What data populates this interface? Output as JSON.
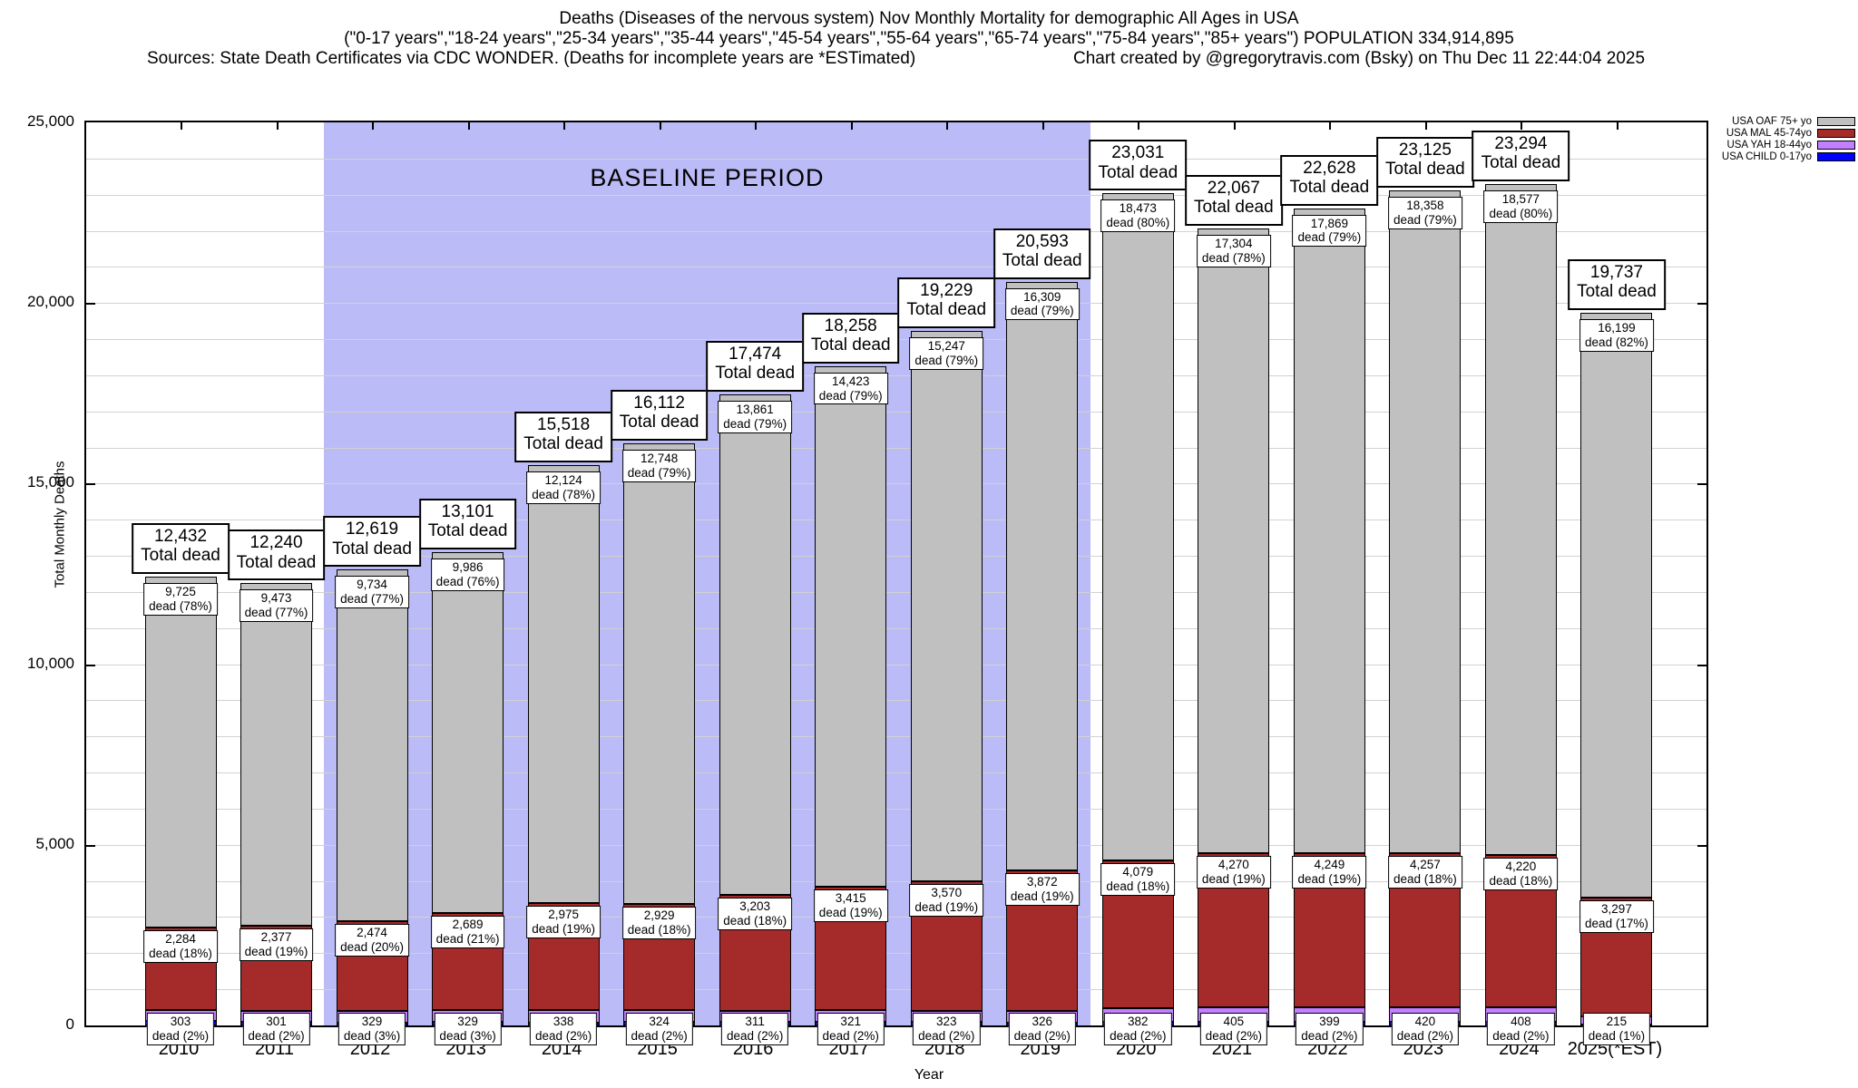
{
  "header": {
    "title_line1": "Deaths (Diseases of the nervous system) Nov Monthly Mortality for demographic All Ages in USA",
    "title_line2": "(\"0-17 years\",\"18-24 years\",\"25-34 years\",\"35-44 years\",\"45-54 years\",\"55-64 years\",\"65-74 years\",\"75-84 years\",\"85+ years\") POPULATION 334,914,895",
    "title_line3_left": "Sources: State Death Certificates via CDC WONDER. (Deaths for incomplete years are *ESTimated)",
    "title_line3_right": "Chart created by @gregorytravis.com (Bsky) on Thu Dec 11 22:44:04 2025"
  },
  "legend": {
    "position": "top-right",
    "entries": [
      {
        "label": "USA OAF 75+ yo",
        "color": "#c0c0c0"
      },
      {
        "label": "USA MAL 45-74yo",
        "color": "#a52a2a"
      },
      {
        "label": "USA YAH 18-44yo",
        "color": "#c27fff"
      },
      {
        "label": "USA CHILD 0-17yo",
        "color": "#0000ff"
      }
    ]
  },
  "baseline_period": {
    "label": "BASELINE PERIOD",
    "start_year": "2012",
    "end_year": "2019",
    "band_color": "#bbbbf7"
  },
  "axes": {
    "ylabel": "Total Monthly Deaths",
    "xlabel": "Year",
    "ylim": [
      0,
      25000
    ],
    "grid_step": 1000,
    "grid": true,
    "ytick_values": [
      0,
      5000,
      10000,
      15000,
      20000,
      25000
    ],
    "ytick_labels": [
      "0",
      "5,000",
      "10,000",
      "15,000",
      "20,000",
      "25,000"
    ]
  },
  "chart_data": {
    "type": "bar",
    "stacked": true,
    "title": "Deaths (Diseases of the nervous system) Nov Monthly Mortality for demographic All Ages in USA",
    "xlabel": "Year",
    "ylabel": "Total Monthly Deaths",
    "ylim": [
      0,
      25000
    ],
    "legend_position": "top-right",
    "series_meta": [
      {
        "name": "USA OAF 75+ yo",
        "key": "oaf",
        "color": "#c0c0c0"
      },
      {
        "name": "USA MAL 45-74yo",
        "key": "mal",
        "color": "#a52a2a"
      },
      {
        "name": "USA YAH 18-44yo",
        "key": "yah",
        "color": "#c27fff"
      },
      {
        "name": "USA CHILD 0-17yo",
        "key": "child",
        "color": "#0000ff",
        "note": "unlabeled remainder of total"
      }
    ],
    "total_label_suffix": "Total dead",
    "segment_label_prefix": "dead",
    "bars": [
      {
        "year": "2010",
        "total": 12432,
        "total_label": "12,432",
        "oaf": 9725,
        "oaf_label": "9,725",
        "oaf_pct": "78%",
        "mal": 2284,
        "mal_label": "2,284",
        "mal_pct": "18%",
        "yah": 303,
        "yah_label": "303",
        "yah_pct": "2%"
      },
      {
        "year": "2011",
        "total": 12240,
        "total_label": "12,240",
        "oaf": 9473,
        "oaf_label": "9,473",
        "oaf_pct": "77%",
        "mal": 2377,
        "mal_label": "2,377",
        "mal_pct": "19%",
        "yah": 301,
        "yah_label": "301",
        "yah_pct": "2%"
      },
      {
        "year": "2012",
        "total": 12619,
        "total_label": "12,619",
        "oaf": 9734,
        "oaf_label": "9,734",
        "oaf_pct": "77%",
        "mal": 2474,
        "mal_label": "2,474",
        "mal_pct": "20%",
        "yah": 329,
        "yah_label": "329",
        "yah_pct": "3%"
      },
      {
        "year": "2013",
        "total": 13101,
        "total_label": "13,101",
        "oaf": 9986,
        "oaf_label": "9,986",
        "oaf_pct": "76%",
        "mal": 2689,
        "mal_label": "2,689",
        "mal_pct": "21%",
        "yah": 329,
        "yah_label": "329",
        "yah_pct": "3%"
      },
      {
        "year": "2014",
        "total": 15518,
        "total_label": "15,518",
        "oaf": 12124,
        "oaf_label": "12,124",
        "oaf_pct": "78%",
        "mal": 2975,
        "mal_label": "2,975",
        "mal_pct": "19%",
        "yah": 338,
        "yah_label": "338",
        "yah_pct": "2%"
      },
      {
        "year": "2015",
        "total": 16112,
        "total_label": "16,112",
        "oaf": 12748,
        "oaf_label": "12,748",
        "oaf_pct": "79%",
        "mal": 2929,
        "mal_label": "2,929",
        "mal_pct": "18%",
        "yah": 324,
        "yah_label": "324",
        "yah_pct": "2%"
      },
      {
        "year": "2016",
        "total": 17474,
        "total_label": "17,474",
        "oaf": 13861,
        "oaf_label": "13,861",
        "oaf_pct": "79%",
        "mal": 3203,
        "mal_label": "3,203",
        "mal_pct": "18%",
        "yah": 311,
        "yah_label": "311",
        "yah_pct": "2%"
      },
      {
        "year": "2017",
        "total": 18258,
        "total_label": "18,258",
        "oaf": 14423,
        "oaf_label": "14,423",
        "oaf_pct": "79%",
        "mal": 3415,
        "mal_label": "3,415",
        "mal_pct": "19%",
        "yah": 321,
        "yah_label": "321",
        "yah_pct": "2%"
      },
      {
        "year": "2018",
        "total": 19229,
        "total_label": "19,229",
        "oaf": 15247,
        "oaf_label": "15,247",
        "oaf_pct": "79%",
        "mal": 3570,
        "mal_label": "3,570",
        "mal_pct": "19%",
        "yah": 323,
        "yah_label": "323",
        "yah_pct": "2%"
      },
      {
        "year": "2019",
        "total": 20593,
        "total_label": "20,593",
        "oaf": 16309,
        "oaf_label": "16,309",
        "oaf_pct": "79%",
        "mal": 3872,
        "mal_label": "3,872",
        "mal_pct": "19%",
        "yah": 326,
        "yah_label": "326",
        "yah_pct": "2%"
      },
      {
        "year": "2020",
        "total": 23031,
        "total_label": "23,031",
        "oaf": 18473,
        "oaf_label": "18,473",
        "oaf_pct": "80%",
        "mal": 4079,
        "mal_label": "4,079",
        "mal_pct": "18%",
        "yah": 382,
        "yah_label": "382",
        "yah_pct": "2%"
      },
      {
        "year": "2021",
        "total": 22067,
        "total_label": "22,067",
        "oaf": 17304,
        "oaf_label": "17,304",
        "oaf_pct": "78%",
        "mal": 4270,
        "mal_label": "4,270",
        "mal_pct": "19%",
        "yah": 405,
        "yah_label": "405",
        "yah_pct": "2%"
      },
      {
        "year": "2022",
        "total": 22628,
        "total_label": "22,628",
        "oaf": 17869,
        "oaf_label": "17,869",
        "oaf_pct": "79%",
        "mal": 4249,
        "mal_label": "4,249",
        "mal_pct": "19%",
        "yah": 399,
        "yah_label": "399",
        "yah_pct": "2%"
      },
      {
        "year": "2023",
        "total": 23125,
        "total_label": "23,125",
        "oaf": 18358,
        "oaf_label": "18,358",
        "oaf_pct": "79%",
        "mal": 4257,
        "mal_label": "4,257",
        "mal_pct": "18%",
        "yah": 420,
        "yah_label": "420",
        "yah_pct": "2%"
      },
      {
        "year": "2024",
        "total": 23294,
        "total_label": "23,294",
        "oaf": 18577,
        "oaf_label": "18,577",
        "oaf_pct": "80%",
        "mal": 4220,
        "mal_label": "4,220",
        "mal_pct": "18%",
        "yah": 408,
        "yah_label": "408",
        "yah_pct": "2%"
      },
      {
        "year": "2025(*EST)",
        "total": 19737,
        "total_label": "19,737",
        "oaf": 16199,
        "oaf_label": "16,199",
        "oaf_pct": "82%",
        "mal": 3297,
        "mal_label": "3,297",
        "mal_pct": "17%",
        "yah": 215,
        "yah_label": "215",
        "yah_pct": "1%"
      }
    ]
  }
}
